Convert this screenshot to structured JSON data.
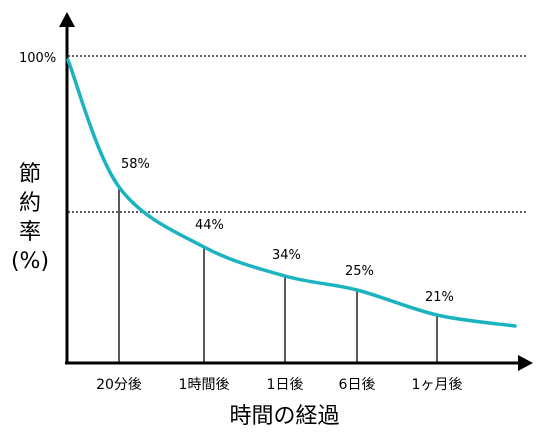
{
  "chart_data": {
    "type": "line",
    "x": [
      "20分後",
      "1時間後",
      "1日後",
      "6日後",
      "1ヶ月後"
    ],
    "values": [
      58,
      44,
      34,
      25,
      21
    ],
    "value_labels": [
      "58%",
      "44%",
      "34%",
      "25%",
      "21%"
    ],
    "ytick_label": "100%",
    "xlabel": "時間の経過",
    "ylabel_lines": [
      "節",
      "約",
      "率",
      "(%)"
    ],
    "line_color": "#1bb3bf",
    "grid": "dotted reference lines at top and mid-height"
  }
}
